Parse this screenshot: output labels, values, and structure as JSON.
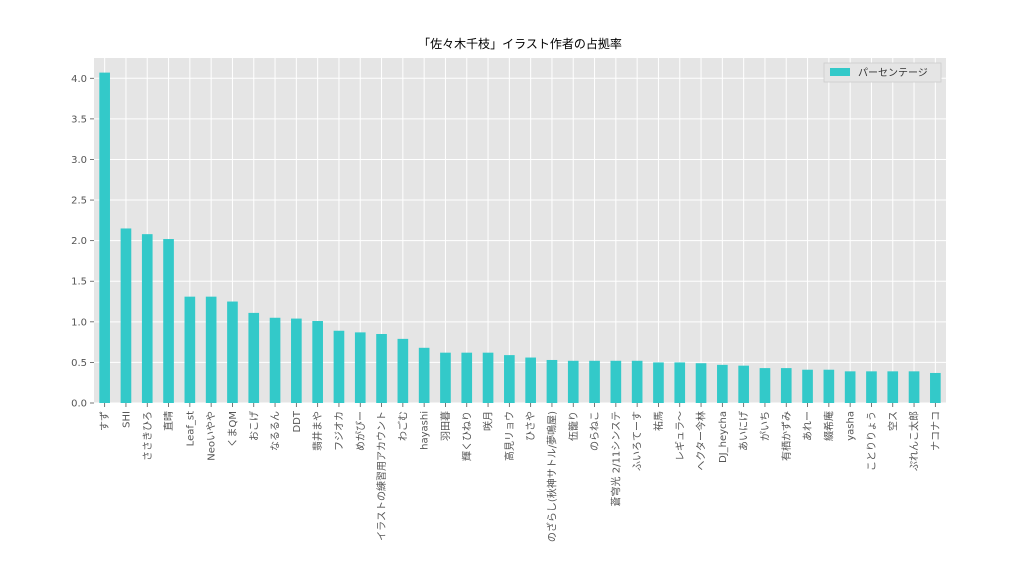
{
  "chart_data": {
    "type": "bar",
    "title": "「佐々木千枝」イラスト作者の占拠率",
    "xlabel": "",
    "ylabel": "",
    "ylim": [
      0,
      4.25
    ],
    "yticks": [
      0.0,
      0.5,
      1.0,
      1.5,
      2.0,
      2.5,
      3.0,
      3.5,
      4.0
    ],
    "ytick_labels": [
      "0.0",
      "0.5",
      "1.0",
      "1.5",
      "2.0",
      "2.5",
      "3.0",
      "3.5",
      "4.0"
    ],
    "grid": true,
    "legend_position": "top-right",
    "bar_color": "#33c9c9",
    "background_color": "#e5e5e5",
    "categories": [
      "すず",
      "SHI",
      "ささきひろ",
      "直晴",
      "Leaf_st",
      "Neoいやや",
      "くまQM",
      "おこげ",
      "なるるん",
      "DDT",
      "翡井まや",
      "フジオカ",
      "めがびー",
      "イラストの練習用アカウント",
      "わごむ",
      "hayashi",
      "羽田暮",
      "輝くひねり",
      "咲月",
      "高見リョウ",
      "ひさや",
      "のざらし(秋神サトル/夢鳴屋)",
      "伍籠り",
      "のらねこ",
      "蒼穹光 2/11シンステ",
      "ふいろてーす",
      "祐馬",
      "レギュラ～",
      "ヘクター今林",
      "DJ_heycha",
      "あいにげ",
      "がいち",
      "有栖かずみ",
      "あれー",
      "綴希庵",
      "yasha",
      "ことりりょう",
      "空ス",
      "ぷれんこ太郎",
      "ナコナコ"
    ],
    "series": [
      {
        "name": "パーセンテージ",
        "values": [
          4.07,
          2.15,
          2.08,
          2.02,
          1.31,
          1.31,
          1.25,
          1.11,
          1.05,
          1.04,
          1.01,
          0.89,
          0.87,
          0.85,
          0.79,
          0.68,
          0.62,
          0.62,
          0.62,
          0.59,
          0.56,
          0.53,
          0.52,
          0.52,
          0.52,
          0.52,
          0.5,
          0.5,
          0.49,
          0.47,
          0.46,
          0.43,
          0.43,
          0.41,
          0.41,
          0.39,
          0.39,
          0.39,
          0.39,
          0.37
        ]
      }
    ]
  }
}
